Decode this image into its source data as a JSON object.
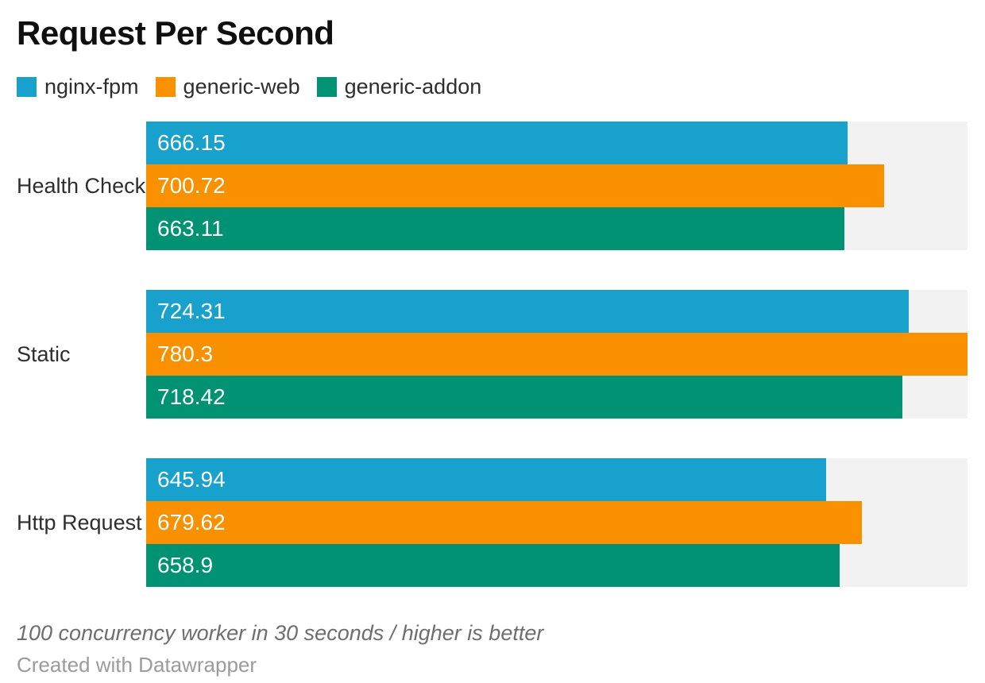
{
  "header": {
    "title": "Request Per Second"
  },
  "footer": {
    "note": "100 concurrency worker in 30 seconds / higher is better",
    "attribution": "Created with Datawrapper"
  },
  "colors": {
    "background": "#ffffff",
    "track": "#f2f2f2",
    "bar_label": "#ffffff"
  },
  "chart_data": {
    "type": "bar",
    "orientation": "horizontal",
    "title": "Request Per Second",
    "categories": [
      "Health Check",
      "Static",
      "Http Request"
    ],
    "series": [
      {
        "name": "nginx-fpm",
        "color": "#18a1cc",
        "values": [
          666.15,
          724.31,
          645.94
        ]
      },
      {
        "name": "generic-web",
        "color": "#f89000",
        "values": [
          700.72,
          780.3,
          679.62
        ]
      },
      {
        "name": "generic-addon",
        "color": "#009273",
        "values": [
          663.11,
          718.42,
          658.9
        ]
      }
    ],
    "xlim": [
      0,
      780.3
    ],
    "legend_position": "top",
    "grid": false,
    "value_labels_inside_bars": true
  }
}
